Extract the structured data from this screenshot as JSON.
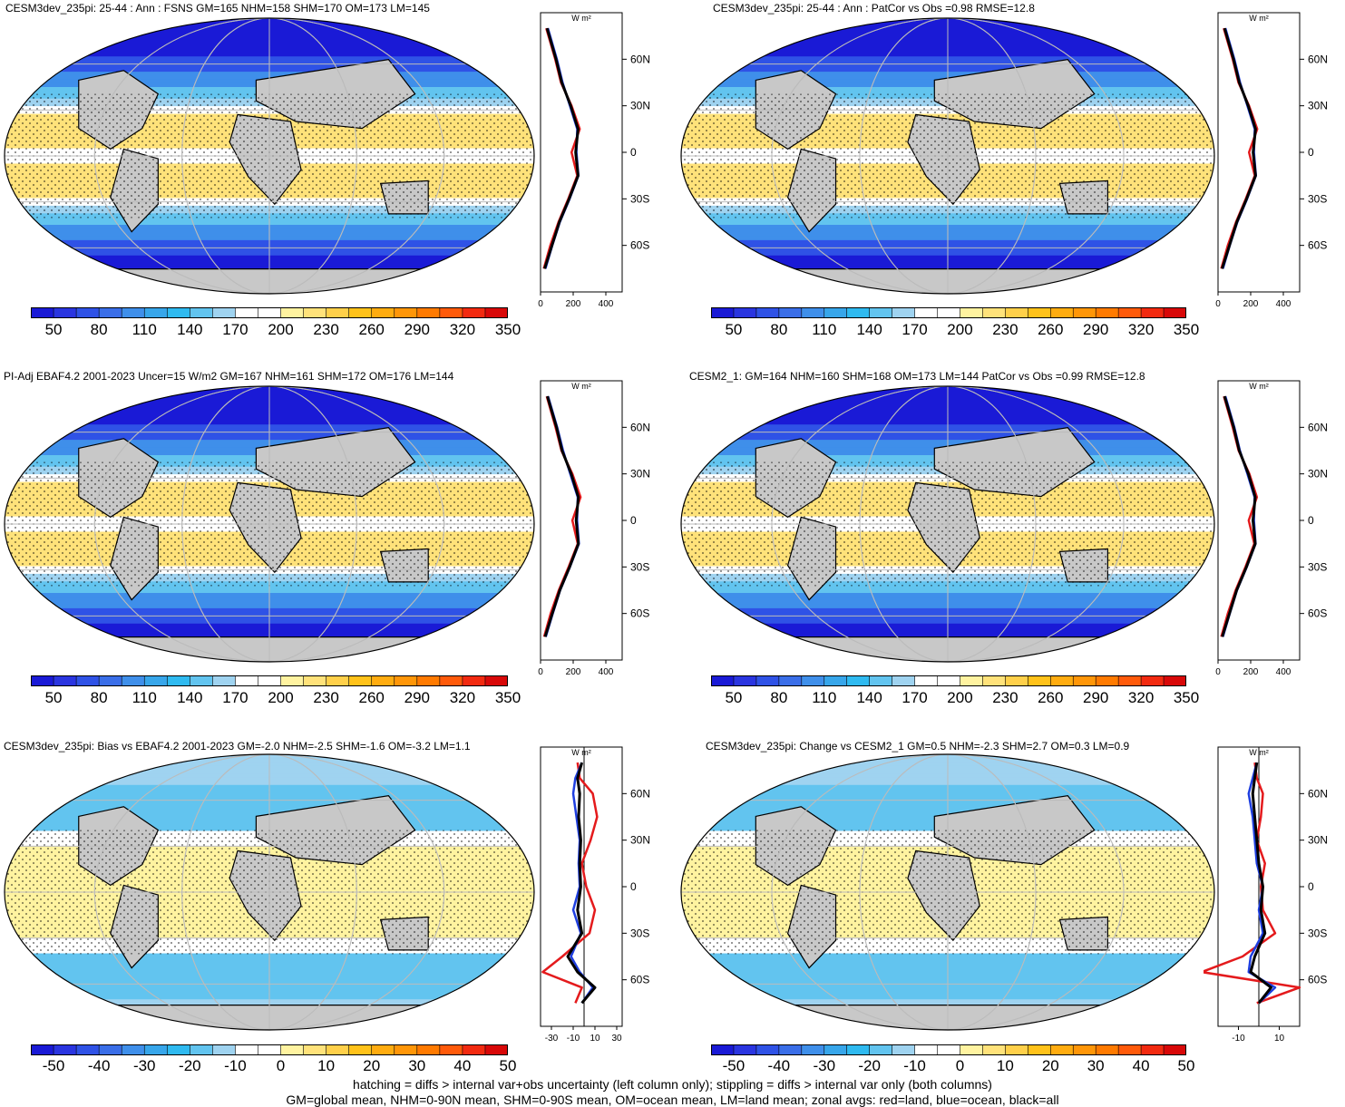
{
  "panels": [
    {
      "title": "CESM3dev_235pi: 25-44 : Ann : FSNS GM=165 NHM=158 SHM=170 OM=173 LM=145",
      "kind": "abs",
      "cbar_labels": [
        "50",
        "80",
        "110",
        "140",
        "170",
        "200",
        "230",
        "260",
        "290",
        "320",
        "350"
      ],
      "profile_x_ticks": [
        "0",
        "200",
        "400"
      ]
    },
    {
      "title": "CESM3dev_235pi: 25-44 : Ann : PatCor vs Obs =0.98 RMSE=12.8",
      "kind": "abs",
      "cbar_labels": [
        "50",
        "80",
        "110",
        "140",
        "170",
        "200",
        "230",
        "260",
        "290",
        "320",
        "350"
      ],
      "profile_x_ticks": [
        "0",
        "200",
        "400"
      ]
    },
    {
      "title": "PI-Adj EBAF4.2 2001-2023 Uncer=15 W/m2 GM=167 NHM=161 SHM=172 OM=176 LM=144",
      "kind": "abs",
      "cbar_labels": [
        "50",
        "80",
        "110",
        "140",
        "170",
        "200",
        "230",
        "260",
        "290",
        "320",
        "350"
      ],
      "profile_x_ticks": [
        "0",
        "200",
        "400"
      ]
    },
    {
      "title": "CESM2_1: GM=164 NHM=160 SHM=168 OM=173 LM=144 PatCor vs Obs =0.99 RMSE=12.8",
      "kind": "abs",
      "cbar_labels": [
        "50",
        "80",
        "110",
        "140",
        "170",
        "200",
        "230",
        "260",
        "290",
        "320",
        "350"
      ],
      "profile_x_ticks": [
        "0",
        "200",
        "400"
      ]
    },
    {
      "title": "CESM3dev_235pi: Bias vs EBAF4.2 2001-2023 GM=-2.0 NHM=-2.5 SHM=-1.6 OM=-3.2 LM=1.1",
      "kind": "diff",
      "cbar_labels": [
        "-50",
        "-40",
        "-30",
        "-20",
        "-10",
        "0",
        "10",
        "20",
        "30",
        "40",
        "50"
      ],
      "profile_x_ticks": [
        "-30",
        "-10",
        "10",
        "30"
      ]
    },
    {
      "title": "CESM3dev_235pi: Change vs CESM2_1 GM=0.5 NHM=-2.3 SHM=2.7 OM=0.3 LM=0.9",
      "kind": "diff",
      "cbar_labels": [
        "-50",
        "-40",
        "-30",
        "-20",
        "-10",
        "0",
        "10",
        "20",
        "30",
        "40",
        "50"
      ],
      "profile_x_ticks": [
        "-10",
        "10"
      ]
    }
  ],
  "profile_unit": "W m²",
  "lat_ticks": [
    "60N",
    "30N",
    "0",
    "30S",
    "60S"
  ],
  "colors": {
    "abs_scale": [
      "#1a1ad6",
      "#2a35e0",
      "#2f52e6",
      "#3a6ee8",
      "#3f8fea",
      "#37a6ea",
      "#2fbaf0",
      "#62c4ef",
      "#9fd3f0",
      "#ffffff",
      "#ffffff",
      "#fff3a0",
      "#ffe27a",
      "#ffd04a",
      "#ffc21a",
      "#ffac10",
      "#ff9608",
      "#ff7a00",
      "#ff5a0a",
      "#f22a10",
      "#d80808"
    ],
    "diff_scale": [
      "#1a1ad6",
      "#2a35e0",
      "#2f52e6",
      "#3a6ee8",
      "#3f8fea",
      "#37a6ea",
      "#2fbaf0",
      "#62c4ef",
      "#9fd3f0",
      "#ffffff",
      "#ffffff",
      "#fff3a0",
      "#ffe27a",
      "#ffd04a",
      "#ffc21a",
      "#ffac10",
      "#ff9608",
      "#ff7a00",
      "#ff5a0a",
      "#f22a10",
      "#d80808"
    ],
    "land": "#c8c8c8",
    "land_line": "#e41a1c",
    "ocean_line": "#1f3fe0",
    "all_line": "#000000"
  },
  "chart_data": [
    {
      "type": "heatmap",
      "title": "CESM3dev_235pi: 25-44 : Ann : FSNS GM=165 NHM=158 SHM=170 OM=173 LM=145",
      "lat": [
        80,
        60,
        45,
        30,
        15,
        0,
        -15,
        -30,
        -45,
        -60,
        -75
      ],
      "zonal_all": [
        40,
        95,
        130,
        185,
        230,
        215,
        230,
        175,
        115,
        70,
        25
      ],
      "zonal_land": [
        35,
        90,
        125,
        190,
        240,
        190,
        225,
        170,
        110,
        60,
        20
      ],
      "zonal_ocean": [
        45,
        100,
        135,
        180,
        225,
        220,
        232,
        178,
        118,
        72,
        30
      ],
      "xlim": [
        0,
        500
      ],
      "ylim": [
        -90,
        90
      ]
    },
    {
      "type": "heatmap",
      "title": "CESM3dev_235pi: 25-44 : Ann : PatCor vs Obs =0.98 RMSE=12.8",
      "lat": [
        80,
        60,
        45,
        30,
        15,
        0,
        -15,
        -30,
        -45,
        -60,
        -75
      ],
      "zonal_all": [
        40,
        95,
        130,
        185,
        230,
        215,
        230,
        175,
        115,
        70,
        25
      ],
      "zonal_land": [
        35,
        90,
        125,
        190,
        240,
        190,
        225,
        170,
        110,
        60,
        20
      ],
      "zonal_ocean": [
        45,
        100,
        135,
        180,
        225,
        220,
        232,
        178,
        118,
        72,
        30
      ],
      "xlim": [
        0,
        500
      ],
      "ylim": [
        -90,
        90
      ]
    },
    {
      "type": "heatmap",
      "title": "PI-Adj EBAF4.2 2001-2023 Uncer=15 W/m2 GM=167 NHM=161 SHM=172 OM=176 LM=144",
      "lat": [
        80,
        60,
        45,
        30,
        15,
        0,
        -15,
        -30,
        -45,
        -60,
        -75
      ],
      "zonal_all": [
        42,
        98,
        132,
        188,
        232,
        218,
        232,
        178,
        118,
        72,
        28
      ],
      "zonal_land": [
        38,
        92,
        128,
        195,
        245,
        195,
        228,
        172,
        112,
        62,
        22
      ],
      "zonal_ocean": [
        46,
        102,
        138,
        182,
        228,
        224,
        235,
        180,
        120,
        75,
        32
      ],
      "xlim": [
        0,
        500
      ],
      "ylim": [
        -90,
        90
      ]
    },
    {
      "type": "heatmap",
      "title": "CESM2_1: GM=164 NHM=160 SHM=168 OM=173 LM=144 PatCor vs Obs =0.99 RMSE=12.8",
      "lat": [
        80,
        60,
        45,
        30,
        15,
        0,
        -15,
        -30,
        -45,
        -60,
        -75
      ],
      "zonal_all": [
        40,
        96,
        130,
        186,
        228,
        214,
        228,
        174,
        114,
        70,
        26
      ],
      "zonal_land": [
        36,
        90,
        126,
        192,
        238,
        188,
        222,
        168,
        108,
        60,
        20
      ],
      "zonal_ocean": [
        45,
        100,
        134,
        180,
        224,
        220,
        230,
        176,
        116,
        72,
        30
      ],
      "xlim": [
        0,
        500
      ],
      "ylim": [
        -90,
        90
      ]
    },
    {
      "type": "heatmap",
      "title": "CESM3dev_235pi: Bias vs EBAF4.2 2001-2023 GM=-2.0 NHM=-2.5 SHM=-1.6 OM=-3.2 LM=1.1",
      "lat": [
        80,
        70,
        60,
        45,
        30,
        15,
        0,
        -15,
        -30,
        -45,
        -55,
        -65,
        -75
      ],
      "zonal_all": [
        -2,
        -6,
        -4,
        -5,
        -3,
        -4,
        -3,
        -6,
        -2,
        -15,
        -6,
        10,
        -2
      ],
      "zonal_land": [
        -6,
        -4,
        8,
        12,
        6,
        -2,
        2,
        10,
        5,
        -20,
        -38,
        -2,
        -8
      ],
      "zonal_ocean": [
        -2,
        -8,
        -10,
        -7,
        -4,
        -5,
        -4,
        -10,
        -3,
        -12,
        -4,
        8,
        -2
      ],
      "xlim": [
        -40,
        35
      ],
      "ylim": [
        -90,
        90
      ]
    },
    {
      "type": "heatmap",
      "title": "CESM3dev_235pi: Change vs CESM2_1 GM=0.5 NHM=-2.3 SHM=2.7 OM=0.3 LM=0.9",
      "lat": [
        80,
        70,
        60,
        45,
        30,
        15,
        0,
        -15,
        -30,
        -45,
        -55,
        -65,
        -75
      ],
      "zonal_all": [
        -1,
        -2,
        -3,
        -2,
        -1,
        0,
        2,
        1,
        3,
        -2,
        -4,
        6,
        0
      ],
      "zonal_land": [
        -2,
        -1,
        2,
        1,
        -1,
        3,
        1,
        2,
        8,
        -8,
        -28,
        20,
        -1
      ],
      "zonal_ocean": [
        -1,
        -3,
        -5,
        -3,
        -2,
        -1,
        2,
        0,
        2,
        -4,
        -5,
        8,
        0
      ],
      "xlim": [
        -20,
        20
      ],
      "ylim": [
        -90,
        90
      ]
    }
  ],
  "footer": {
    "line1": "hatching = diffs > internal var+obs uncertainty (left column only); stippling = diffs > internal var only (both columns)",
    "line2": "GM=global mean, NHM=0-90N mean, SHM=0-90S mean, OM=ocean mean, LM=land mean; zonal avgs: red=land, blue=ocean, black=all"
  }
}
